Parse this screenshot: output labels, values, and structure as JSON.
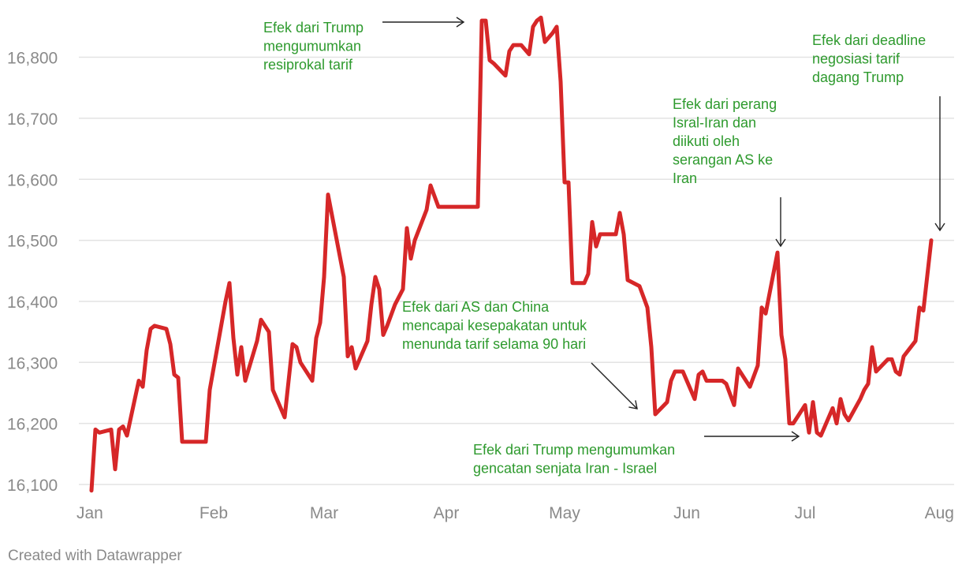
{
  "chart_data": {
    "type": "line",
    "title": "",
    "xlabel": "",
    "ylabel": "",
    "ylim": [
      16085,
      16885
    ],
    "yticks": [
      16100,
      16200,
      16300,
      16400,
      16500,
      16600,
      16700,
      16800
    ],
    "ytick_labels": [
      "16,100",
      "16,200",
      "16,300",
      "16,400",
      "16,500",
      "16,600",
      "16,700",
      "16,800"
    ],
    "xtick_labels": [
      "Jan",
      "Feb",
      "Mar",
      "Apr",
      "May",
      "Jun",
      "Jul",
      "Aug"
    ],
    "x_axis_unit": "days since Jan 1, 2025",
    "xticks": [
      0,
      31,
      59,
      90,
      120,
      151,
      181,
      212
    ],
    "grid": true,
    "color": "#d62728",
    "points": [
      [
        0,
        16090
      ],
      [
        1,
        16190
      ],
      [
        2,
        16185
      ],
      [
        5,
        16190
      ],
      [
        6,
        16125
      ],
      [
        7,
        16190
      ],
      [
        8,
        16195
      ],
      [
        9,
        16180
      ],
      [
        12,
        16270
      ],
      [
        13,
        16260
      ],
      [
        14,
        16320
      ],
      [
        15,
        16355
      ],
      [
        16,
        16360
      ],
      [
        19,
        16355
      ],
      [
        20,
        16330
      ],
      [
        21,
        16280
      ],
      [
        22,
        16275
      ],
      [
        23,
        16170
      ],
      [
        29,
        16170
      ],
      [
        30,
        16255
      ],
      [
        34,
        16400
      ],
      [
        35,
        16430
      ],
      [
        36,
        16340
      ],
      [
        37,
        16280
      ],
      [
        38,
        16325
      ],
      [
        39,
        16270
      ],
      [
        42,
        16335
      ],
      [
        43,
        16370
      ],
      [
        45,
        16350
      ],
      [
        46,
        16255
      ],
      [
        49,
        16210
      ],
      [
        51,
        16330
      ],
      [
        52,
        16325
      ],
      [
        53,
        16300
      ],
      [
        56,
        16270
      ],
      [
        57,
        16340
      ],
      [
        58,
        16365
      ],
      [
        59,
        16440
      ],
      [
        60,
        16575
      ],
      [
        64,
        16440
      ],
      [
        65,
        16310
      ],
      [
        66,
        16325
      ],
      [
        67,
        16290
      ],
      [
        70,
        16335
      ],
      [
        71,
        16395
      ],
      [
        72,
        16440
      ],
      [
        73,
        16420
      ],
      [
        74,
        16345
      ],
      [
        75,
        16360
      ],
      [
        77,
        16395
      ],
      [
        79,
        16420
      ],
      [
        80,
        16520
      ],
      [
        81,
        16470
      ],
      [
        82,
        16500
      ],
      [
        85,
        16550
      ],
      [
        86,
        16590
      ],
      [
        88,
        16555
      ],
      [
        98,
        16555
      ],
      [
        99,
        16860
      ],
      [
        100,
        16860
      ],
      [
        101,
        16795
      ],
      [
        102,
        16790
      ],
      [
        105,
        16770
      ],
      [
        106,
        16810
      ],
      [
        107,
        16820
      ],
      [
        109,
        16820
      ],
      [
        111,
        16805
      ],
      [
        112,
        16850
      ],
      [
        113,
        16860
      ],
      [
        114,
        16865
      ],
      [
        115,
        16825
      ],
      [
        117,
        16840
      ],
      [
        118,
        16850
      ],
      [
        119,
        16760
      ],
      [
        120,
        16595
      ],
      [
        121,
        16595
      ],
      [
        122,
        16430
      ],
      [
        125,
        16430
      ],
      [
        126,
        16445
      ],
      [
        127,
        16530
      ],
      [
        128,
        16490
      ],
      [
        129,
        16510
      ],
      [
        133,
        16510
      ],
      [
        134,
        16545
      ],
      [
        135,
        16510
      ],
      [
        136,
        16435
      ],
      [
        139,
        16425
      ],
      [
        141,
        16390
      ],
      [
        142,
        16325
      ],
      [
        143,
        16215
      ],
      [
        146,
        16235
      ],
      [
        147,
        16270
      ],
      [
        148,
        16285
      ],
      [
        150,
        16285
      ],
      [
        153,
        16240
      ],
      [
        154,
        16280
      ],
      [
        155,
        16285
      ],
      [
        156,
        16270
      ],
      [
        160,
        16270
      ],
      [
        161,
        16265
      ],
      [
        163,
        16230
      ],
      [
        164,
        16290
      ],
      [
        167,
        16260
      ],
      [
        169,
        16295
      ],
      [
        170,
        16390
      ],
      [
        171,
        16380
      ],
      [
        174,
        16480
      ],
      [
        175,
        16345
      ],
      [
        176,
        16305
      ],
      [
        177,
        16200
      ],
      [
        178,
        16200
      ],
      [
        181,
        16230
      ],
      [
        182,
        16185
      ],
      [
        183,
        16235
      ],
      [
        184,
        16185
      ],
      [
        185,
        16180
      ],
      [
        188,
        16225
      ],
      [
        189,
        16200
      ],
      [
        190,
        16240
      ],
      [
        191,
        16215
      ],
      [
        192,
        16205
      ],
      [
        195,
        16240
      ],
      [
        196,
        16255
      ],
      [
        197,
        16265
      ],
      [
        198,
        16325
      ],
      [
        199,
        16285
      ],
      [
        202,
        16305
      ],
      [
        203,
        16305
      ],
      [
        204,
        16285
      ],
      [
        205,
        16280
      ],
      [
        206,
        16310
      ],
      [
        209,
        16335
      ],
      [
        210,
        16390
      ],
      [
        211,
        16385
      ],
      [
        213,
        16500
      ]
    ]
  },
  "annotations": [
    {
      "lines": [
        "Efek dari Trump",
        "mengumumkan",
        "resiprokal tarif"
      ]
    },
    {
      "lines": [
        "Efek dari deadline",
        "negosiasi tarif",
        "dagang Trump"
      ]
    },
    {
      "lines": [
        "Efek dari perang",
        "Isral-Iran dan",
        "diikuti oleh",
        "serangan AS ke",
        "Iran"
      ]
    },
    {
      "lines": [
        "Efek dari AS dan China",
        "mencapai kesepakatan untuk",
        "menunda tarif selama 90 hari"
      ]
    },
    {
      "lines": [
        "Efek dari Trump mengumumkan",
        "gencatan senjata Iran - Israel"
      ]
    }
  ],
  "footer": {
    "credit": "Created with Datawrapper"
  }
}
